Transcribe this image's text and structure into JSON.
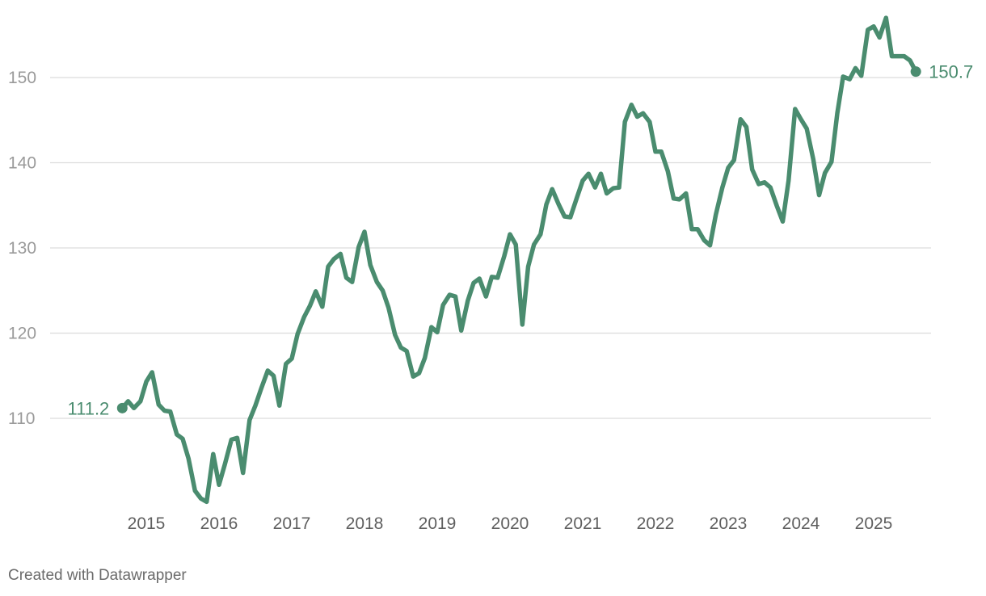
{
  "chart_data": {
    "type": "line",
    "title": "",
    "xlabel": "",
    "ylabel": "",
    "xlim": [
      2014.55,
      2025.65
    ],
    "ylim": [
      100,
      160
    ],
    "y_ticks": [
      110,
      120,
      130,
      140,
      150
    ],
    "y_tick_labels": [
      "110",
      "120",
      "130",
      "140",
      "150"
    ],
    "x_ticks": [
      2015,
      2016,
      2017,
      2018,
      2019,
      2020,
      2021,
      2022,
      2023,
      2024,
      2025
    ],
    "x_tick_labels": [
      "2015",
      "2016",
      "2017",
      "2018",
      "2019",
      "2020",
      "2021",
      "2022",
      "2023",
      "2024",
      "2025"
    ],
    "grid": true,
    "color": "#4a8c6f",
    "series": [
      {
        "points": [
          [
            2014.67,
            111.2
          ],
          [
            2014.75,
            112.0
          ],
          [
            2014.83,
            111.2
          ],
          [
            2014.92,
            112.0
          ],
          [
            2015.0,
            114.3
          ],
          [
            2015.08,
            115.4
          ],
          [
            2015.17,
            111.6
          ],
          [
            2015.25,
            110.9
          ],
          [
            2015.33,
            110.8
          ],
          [
            2015.42,
            108.1
          ],
          [
            2015.5,
            107.6
          ],
          [
            2015.58,
            105.3
          ],
          [
            2015.67,
            101.5
          ],
          [
            2015.75,
            100.6
          ],
          [
            2015.83,
            100.2
          ],
          [
            2015.92,
            105.8
          ],
          [
            2016.0,
            102.2
          ],
          [
            2016.08,
            104.6
          ],
          [
            2016.17,
            107.5
          ],
          [
            2016.25,
            107.7
          ],
          [
            2016.33,
            103.6
          ],
          [
            2016.42,
            109.8
          ],
          [
            2016.5,
            111.5
          ],
          [
            2016.58,
            113.5
          ],
          [
            2016.67,
            115.6
          ],
          [
            2016.75,
            115.0
          ],
          [
            2016.83,
            111.5
          ],
          [
            2016.92,
            116.4
          ],
          [
            2017.0,
            117.0
          ],
          [
            2017.08,
            119.9
          ],
          [
            2017.17,
            121.9
          ],
          [
            2017.25,
            123.2
          ],
          [
            2017.33,
            124.9
          ],
          [
            2017.42,
            123.1
          ],
          [
            2017.5,
            127.8
          ],
          [
            2017.58,
            128.7
          ],
          [
            2017.67,
            129.3
          ],
          [
            2017.75,
            126.5
          ],
          [
            2017.83,
            126.0
          ],
          [
            2017.92,
            130.1
          ],
          [
            2018.0,
            131.9
          ],
          [
            2018.08,
            128.0
          ],
          [
            2018.17,
            126.0
          ],
          [
            2018.25,
            125.0
          ],
          [
            2018.33,
            123.0
          ],
          [
            2018.42,
            119.8
          ],
          [
            2018.5,
            118.3
          ],
          [
            2018.58,
            117.9
          ],
          [
            2018.67,
            114.9
          ],
          [
            2018.75,
            115.3
          ],
          [
            2018.83,
            117.1
          ],
          [
            2018.92,
            120.7
          ],
          [
            2019.0,
            120.1
          ],
          [
            2019.08,
            123.3
          ],
          [
            2019.17,
            124.5
          ],
          [
            2019.25,
            124.3
          ],
          [
            2019.33,
            120.3
          ],
          [
            2019.42,
            123.8
          ],
          [
            2019.5,
            125.9
          ],
          [
            2019.58,
            126.4
          ],
          [
            2019.67,
            124.3
          ],
          [
            2019.75,
            126.6
          ],
          [
            2019.83,
            126.5
          ],
          [
            2019.92,
            129.0
          ],
          [
            2020.0,
            131.6
          ],
          [
            2020.08,
            130.4
          ],
          [
            2020.17,
            121.0
          ],
          [
            2020.25,
            127.8
          ],
          [
            2020.33,
            130.4
          ],
          [
            2020.42,
            131.6
          ],
          [
            2020.5,
            135.1
          ],
          [
            2020.58,
            136.9
          ],
          [
            2020.67,
            135.1
          ],
          [
            2020.75,
            133.7
          ],
          [
            2020.83,
            133.6
          ],
          [
            2020.92,
            135.9
          ],
          [
            2021.0,
            137.9
          ],
          [
            2021.08,
            138.7
          ],
          [
            2021.17,
            137.1
          ],
          [
            2021.25,
            138.7
          ],
          [
            2021.33,
            136.4
          ],
          [
            2021.42,
            137.0
          ],
          [
            2021.5,
            137.1
          ],
          [
            2021.58,
            144.8
          ],
          [
            2021.67,
            146.8
          ],
          [
            2021.75,
            145.4
          ],
          [
            2021.83,
            145.8
          ],
          [
            2021.92,
            144.8
          ],
          [
            2022.0,
            141.3
          ],
          [
            2022.08,
            141.3
          ],
          [
            2022.17,
            139.0
          ],
          [
            2022.25,
            135.8
          ],
          [
            2022.33,
            135.7
          ],
          [
            2022.42,
            136.4
          ],
          [
            2022.5,
            132.2
          ],
          [
            2022.58,
            132.2
          ],
          [
            2022.67,
            130.9
          ],
          [
            2022.75,
            130.3
          ],
          [
            2022.83,
            133.9
          ],
          [
            2022.92,
            137.1
          ],
          [
            2023.0,
            139.4
          ],
          [
            2023.08,
            140.3
          ],
          [
            2023.17,
            145.1
          ],
          [
            2023.25,
            144.2
          ],
          [
            2023.33,
            139.2
          ],
          [
            2023.42,
            137.5
          ],
          [
            2023.5,
            137.7
          ],
          [
            2023.58,
            137.1
          ],
          [
            2023.67,
            134.9
          ],
          [
            2023.75,
            133.1
          ],
          [
            2023.83,
            137.9
          ],
          [
            2023.92,
            146.3
          ],
          [
            2024.0,
            145.1
          ],
          [
            2024.08,
            144.0
          ],
          [
            2024.17,
            140.4
          ],
          [
            2024.25,
            136.2
          ],
          [
            2024.33,
            138.8
          ],
          [
            2024.42,
            140.1
          ],
          [
            2024.5,
            145.8
          ],
          [
            2024.58,
            150.1
          ],
          [
            2024.67,
            149.8
          ],
          [
            2024.75,
            151.1
          ],
          [
            2024.83,
            150.2
          ],
          [
            2024.92,
            155.6
          ],
          [
            2025.0,
            156.0
          ],
          [
            2025.08,
            154.7
          ],
          [
            2025.17,
            157.0
          ],
          [
            2025.25,
            152.5
          ],
          [
            2025.33,
            152.5
          ],
          [
            2025.42,
            152.5
          ],
          [
            2025.5,
            152.0
          ],
          [
            2025.58,
            150.7
          ]
        ]
      }
    ],
    "annotations": [
      {
        "label": "111.2",
        "x": 2014.67,
        "y": 111.2,
        "side": "left"
      },
      {
        "label": "150.7",
        "x": 2025.58,
        "y": 150.7,
        "side": "right"
      }
    ]
  },
  "footer": {
    "credit": "Created with Datawrapper"
  }
}
